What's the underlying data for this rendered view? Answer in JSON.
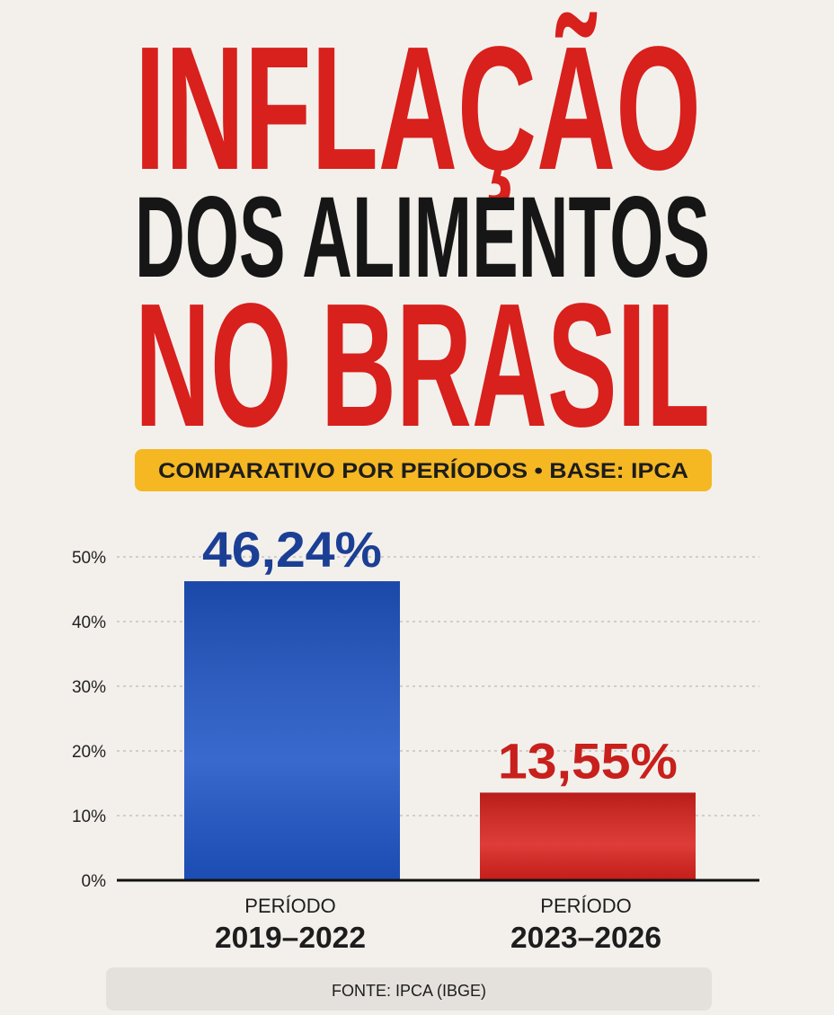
{
  "chart_data": {
    "type": "bar",
    "title": [
      {
        "text": "INFLAÇÃO",
        "color": "#d8201c"
      },
      {
        "text": "DOS ALIMENTOS",
        "color": "#161616"
      },
      {
        "text": "NO BRASIL",
        "color": "#d8201c"
      }
    ],
    "subtitle": "COMPARATIVO POR PERÍODOS • BASE: IPCA",
    "source": "FONTE: IPCA (IBGE)",
    "categories": [
      [
        "PERÍODO",
        "2019–2022"
      ],
      [
        "PERÍODO",
        "2023–2026"
      ]
    ],
    "values": [
      46.24,
      13.55
    ],
    "value_labels": [
      "46,24%",
      "13,55%"
    ],
    "colors": [
      "#1f55c6",
      "#d9221d"
    ],
    "value_label_colors": [
      "#1b3f95",
      "#c8201c"
    ],
    "ylim": [
      0,
      50
    ],
    "yticks": [
      {
        "value": 0,
        "label": "0%"
      },
      {
        "value": 10,
        "label": "10%"
      },
      {
        "value": 20,
        "label": "20%"
      },
      {
        "value": 30,
        "label": "30%"
      },
      {
        "value": 40,
        "label": "40%"
      },
      {
        "value": 50,
        "label": "50%"
      }
    ],
    "grid": true
  }
}
